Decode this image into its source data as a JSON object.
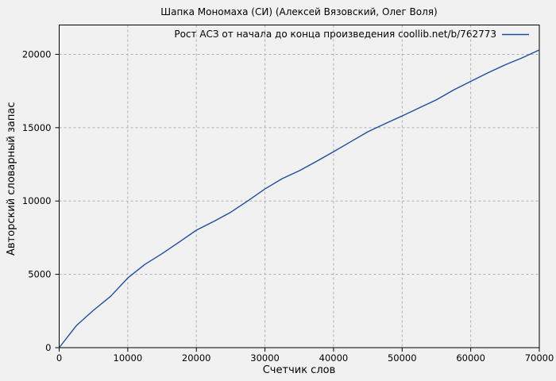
{
  "chart_data": {
    "type": "line",
    "title": "Шапка Мономаха (СИ) (Алексей Вязовский, Олег Воля)",
    "xlabel": "Счетчик слов",
    "ylabel": "Авторский словарный запас",
    "legend_position": "top-right-inside",
    "grid": "dashed",
    "xlim": [
      0,
      70000
    ],
    "ylim": [
      0,
      22000
    ],
    "xticks": [
      0,
      10000,
      20000,
      30000,
      40000,
      50000,
      60000,
      70000
    ],
    "yticks": [
      0,
      5000,
      10000,
      15000,
      20000
    ],
    "series": [
      {
        "name": "Рост АСЗ от начала до конца произведения coollib.net/b/762773",
        "color": "#1e4e9b",
        "x": [
          0,
          2500,
          5000,
          7500,
          10000,
          12500,
          15000,
          17500,
          20000,
          22500,
          25000,
          27500,
          30000,
          32500,
          35000,
          37500,
          40000,
          42500,
          45000,
          47500,
          50000,
          52500,
          55000,
          57500,
          60000,
          62500,
          65000,
          67500,
          70000
        ],
        "y": [
          0,
          1500,
          2550,
          3500,
          4750,
          5680,
          6410,
          7200,
          8010,
          8600,
          9230,
          10010,
          10820,
          11520,
          12060,
          12700,
          13360,
          14040,
          14720,
          15270,
          15800,
          16350,
          16900,
          17570,
          18160,
          18740,
          19280,
          19760,
          20300
        ]
      }
    ]
  },
  "style": {
    "background": "#f1f1f1",
    "frame_color": "#000000",
    "grid_color": "#aeaeae",
    "text_color": "#000000",
    "tick_font_px": 11.5
  }
}
